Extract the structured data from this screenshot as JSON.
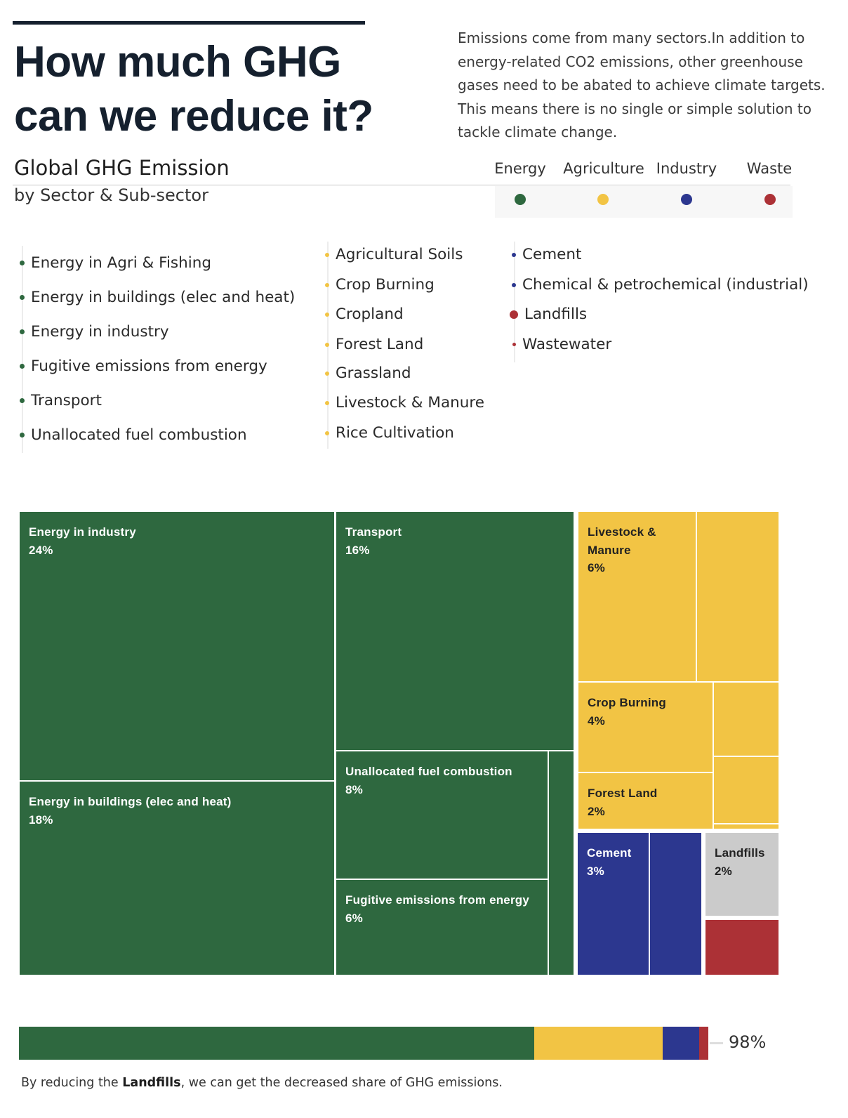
{
  "header": {
    "title_line1": "How much GHG",
    "title_line2": "can we reduce it?",
    "intro_lines": [
      "Emissions come from many sectors.In addition to",
      "energy-related CO2 emissions, other greenhouse",
      "gases need to be abated to achieve climate targets.",
      "This means there is no single or simple solution to",
      "tackle climate change."
    ]
  },
  "chart": {
    "title": "Global GHG Emission",
    "subtitle": "by Sector & Sub-sector"
  },
  "legend": [
    {
      "label": "Energy",
      "color": "#2e683f"
    },
    {
      "label": "Agriculture",
      "color": "#f2c444"
    },
    {
      "label": "Industry",
      "color": "#2c378f"
    },
    {
      "label": "Waste",
      "color": "#ac3136"
    }
  ],
  "subsectors": {
    "energy": [
      "Energy in Agri & Fishing",
      "Energy in buildings (elec and heat)",
      "Energy in industry",
      "Fugitive emissions from energy",
      "Transport",
      "Unallocated fuel combustion"
    ],
    "agriculture": [
      "Agricultural Soils",
      "Crop Burning",
      "Cropland",
      "Forest Land",
      "Grassland",
      "Livestock & Manure",
      "Rice Cultivation"
    ],
    "industry_waste": [
      "Cement",
      "Chemical & petrochemical (industrial)",
      "Landfills",
      "Wastewater"
    ]
  },
  "chart_data": {
    "type": "treemap",
    "value_unit": "% of global GHG emissions",
    "highlighted": "Landfills",
    "cells": [
      {
        "name": "Energy in industry",
        "sector": "Energy",
        "label": "Energy in industry",
        "value_label": "24%",
        "value": 24
      },
      {
        "name": "Energy in buildings (elec and heat)",
        "sector": "Energy",
        "label": "Energy in buildings (elec and heat)",
        "value_label": "18%",
        "value": 18
      },
      {
        "name": "Transport",
        "sector": "Energy",
        "label": "Transport",
        "value_label": "16%",
        "value": 16
      },
      {
        "name": "Unallocated fuel combustion",
        "sector": "Energy",
        "label": "Unallocated fuel combustion",
        "value_label": "8%",
        "value": 8
      },
      {
        "name": "Fugitive emissions from energy",
        "sector": "Energy",
        "label": "Fugitive emissions from energy",
        "value_label": "6%",
        "value": 6
      },
      {
        "name": "Energy in Agri & Fishing",
        "sector": "Energy",
        "label": "",
        "value_label": "",
        "value": 2
      },
      {
        "name": "Livestock & Manure",
        "sector": "Agriculture",
        "label": "Livestock &\nManure",
        "value_label": "6%",
        "value": 6
      },
      {
        "name": "Agricultural Soils",
        "sector": "Agriculture",
        "label": "",
        "value_label": "",
        "value": 4
      },
      {
        "name": "Crop Burning",
        "sector": "Agriculture",
        "label": "Crop Burning",
        "value_label": "4%",
        "value": 4
      },
      {
        "name": "Rice Cultivation",
        "sector": "Agriculture",
        "label": "",
        "value_label": "",
        "value": 1
      },
      {
        "name": "Grassland",
        "sector": "Agriculture",
        "label": "",
        "value_label": "",
        "value": 1
      },
      {
        "name": "Cropland",
        "sector": "Agriculture",
        "label": "",
        "value_label": "",
        "value": 0.1
      },
      {
        "name": "Forest Land",
        "sector": "Agriculture",
        "label": "Forest Land",
        "value_label": "2%",
        "value": 2
      },
      {
        "name": "Cement",
        "sector": "Industry",
        "label": "Cement",
        "value_label": "3%",
        "value": 3
      },
      {
        "name": "Chemical & petrochemical (industrial)",
        "sector": "Industry",
        "label": "",
        "value_label": "",
        "value": 2
      },
      {
        "name": "Landfills",
        "sector": "Waste",
        "label": "Landfills",
        "value_label": "2%",
        "value": 2
      },
      {
        "name": "Wastewater",
        "sector": "Waste",
        "label": "",
        "value_label": "",
        "value": 1
      }
    ]
  },
  "bar": {
    "pct_label": "98%",
    "segments": [
      {
        "sector": "Energy",
        "share": 73.2
      },
      {
        "sector": "Agriculture",
        "share": 18.2
      },
      {
        "sector": "Industry",
        "share": 5.2
      },
      {
        "sector": "Waste",
        "share": 1.3
      }
    ],
    "total_pct": 98
  },
  "footnote": {
    "prefix": "By reducing the ",
    "bold": "Landfills",
    "suffix": ", we can get the decreased share of GHG emissions."
  }
}
